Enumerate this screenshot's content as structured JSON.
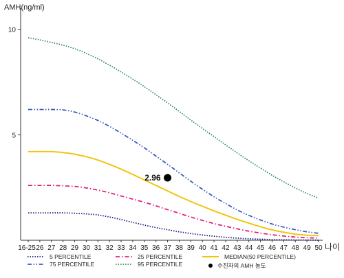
{
  "chart_data": {
    "type": "line",
    "ylabel": "AMH(ng/ml)",
    "xlabel": "나이",
    "ylim": [
      0,
      11
    ],
    "yticks": [
      {
        "value": 10,
        "label": "10"
      },
      {
        "value": 5,
        "label": "5"
      }
    ],
    "categories": [
      "16-25",
      "26",
      "27",
      "28",
      "29",
      "30",
      "31",
      "32",
      "33",
      "34",
      "35",
      "36",
      "37",
      "38",
      "39",
      "40",
      "41",
      "42",
      "43",
      "44",
      "45",
      "46",
      "47",
      "48",
      "49",
      "50"
    ],
    "grid": false,
    "legend_position": "bottom",
    "series": [
      {
        "name": "5 PERCENTILE",
        "color": "#1a237e",
        "dash": "dotted",
        "values": [
          1.3,
          1.3,
          1.3,
          1.3,
          1.28,
          1.25,
          1.2,
          1.1,
          0.98,
          0.85,
          0.72,
          0.6,
          0.5,
          0.4,
          0.32,
          0.25,
          0.19,
          0.14,
          0.1,
          0.07,
          0.05,
          0.03,
          0.02,
          0.01,
          0.01,
          0.0
        ]
      },
      {
        "name": "25 PERCENTILE",
        "color": "#e0207a",
        "dash": "dashdot",
        "values": [
          2.6,
          2.6,
          2.6,
          2.58,
          2.55,
          2.48,
          2.38,
          2.25,
          2.1,
          1.95,
          1.8,
          1.63,
          1.45,
          1.28,
          1.1,
          0.94,
          0.79,
          0.66,
          0.54,
          0.43,
          0.34,
          0.26,
          0.2,
          0.15,
          0.12,
          0.1
        ]
      },
      {
        "name": "MEDIAN(50 PERCENTILE)",
        "color": "#f2c40c",
        "dash": "solid",
        "values": [
          4.2,
          4.2,
          4.2,
          4.16,
          4.08,
          3.96,
          3.8,
          3.6,
          3.37,
          3.12,
          2.86,
          2.6,
          2.34,
          2.08,
          1.84,
          1.61,
          1.39,
          1.19,
          0.99,
          0.81,
          0.64,
          0.49,
          0.38,
          0.29,
          0.24,
          0.22
        ]
      },
      {
        "name": "75 PERCENTILE",
        "color": "#3b5bbf",
        "dash": "dashdotdot",
        "values": [
          6.2,
          6.2,
          6.2,
          6.18,
          6.08,
          5.9,
          5.68,
          5.4,
          5.08,
          4.74,
          4.38,
          3.99,
          3.6,
          3.2,
          2.8,
          2.42,
          2.06,
          1.74,
          1.44,
          1.18,
          0.96,
          0.77,
          0.62,
          0.5,
          0.4,
          0.33
        ]
      },
      {
        "name": "95 PERCENTILE",
        "color": "#2e8b57",
        "dash": "dotted",
        "values": [
          9.6,
          9.5,
          9.38,
          9.25,
          9.08,
          8.86,
          8.6,
          8.3,
          7.98,
          7.64,
          7.28,
          6.9,
          6.51,
          6.11,
          5.7,
          5.3,
          4.91,
          4.52,
          4.14,
          3.77,
          3.42,
          3.08,
          2.77,
          2.48,
          2.22,
          2.0
        ]
      }
    ],
    "marker": {
      "name": "수진자의 AMH 농도",
      "x": "37",
      "y": 2.96,
      "label": "2.96",
      "color": "#000000"
    },
    "legend": [
      {
        "label": "5 PERCENTILE",
        "series": 0
      },
      {
        "label": "25 PERCENTILE",
        "series": 1
      },
      {
        "label": "MEDIAN(50 PERCENTILE)",
        "series": 2
      },
      {
        "label": "75 PERCENTILE",
        "series": 3
      },
      {
        "label": "95 PERCENTILE",
        "series": 4
      },
      {
        "label": "수진자의 AMH 농도",
        "series": "marker"
      }
    ]
  }
}
